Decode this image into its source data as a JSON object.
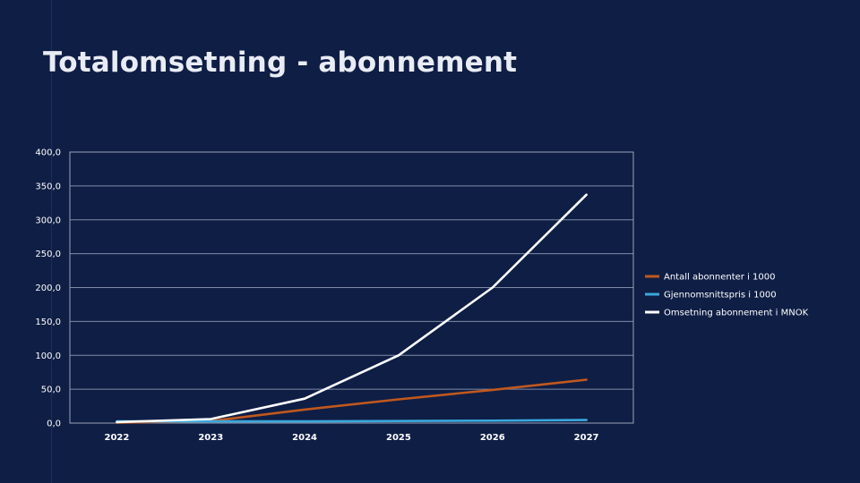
{
  "slide": {
    "title": "Totalomsetning - abonnement"
  },
  "chart_data": {
    "type": "line",
    "title": "",
    "xlabel": "",
    "ylabel": "",
    "categories": [
      "2022",
      "2023",
      "2024",
      "2025",
      "2026",
      "2027"
    ],
    "ylim": [
      0,
      400
    ],
    "yticks": [
      "0,0",
      "50,0",
      "100,0",
      "150,0",
      "200,0",
      "250,0",
      "300,0",
      "350,0",
      "400,0"
    ],
    "grid": true,
    "legend_position": "right",
    "series": [
      {
        "name": "Antall abonnenter i 1000",
        "color": "#c0581e",
        "values": [
          0.5,
          3,
          20,
          35,
          49,
          64
        ]
      },
      {
        "name": "Gjennomsnittspris i 1000",
        "color": "#3aa8dc",
        "values": [
          2.5,
          2.5,
          2.5,
          3,
          3.5,
          4.5
        ]
      },
      {
        "name": "Omsetning abonnement i MNOK",
        "color": "#ffffff",
        "values": [
          1.5,
          6,
          36,
          100,
          200,
          337
        ]
      }
    ]
  }
}
